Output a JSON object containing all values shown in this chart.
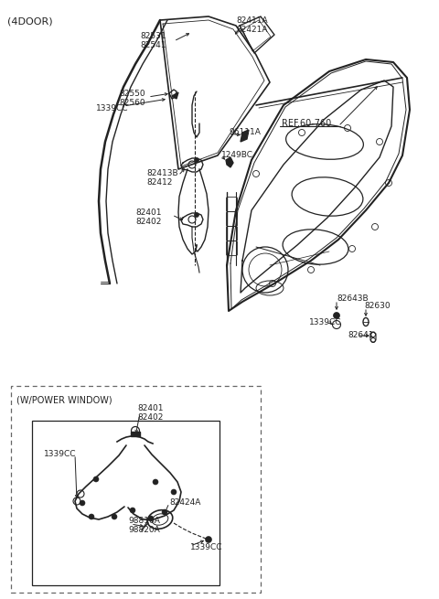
{
  "bg_color": "#ffffff",
  "line_color": "#222222",
  "title": "(4DOOR)",
  "ref_label": "REF.60-760",
  "pw_label": "(W/POWER WINDOW)",
  "figsize": [
    4.8,
    6.55
  ],
  "dpi": 100
}
